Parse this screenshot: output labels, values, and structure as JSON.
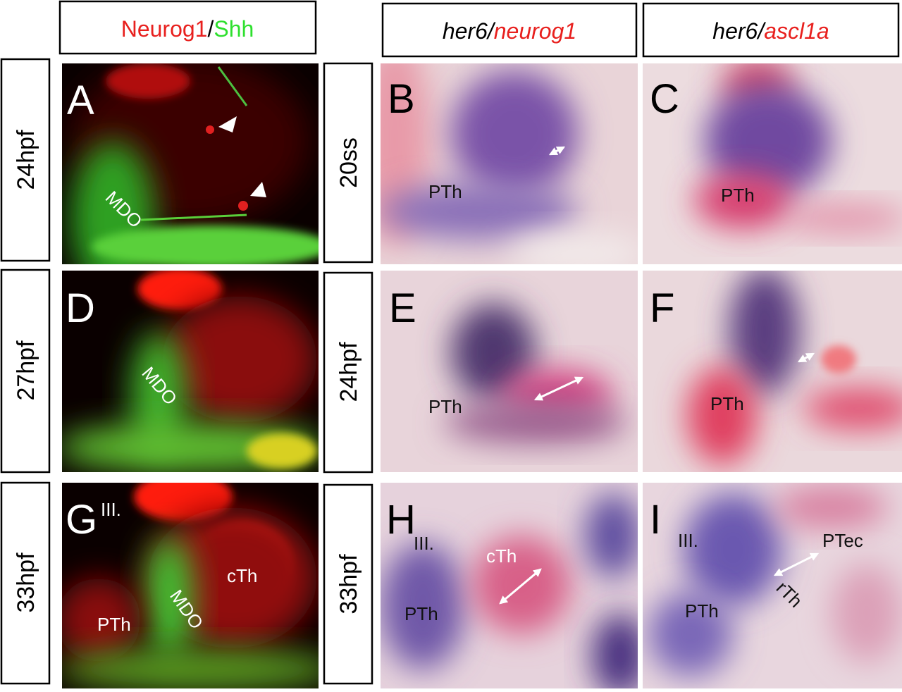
{
  "column_headers": [
    [
      "Neurog1",
      "/",
      "Shh"
    ],
    [
      "her6",
      "/",
      "neurog1"
    ],
    [
      "her6",
      "/",
      "ascl1a"
    ]
  ],
  "row_labels_left": [
    "24hpf",
    "27hpf",
    "33hpf"
  ],
  "row_labels_right": [
    "20ss",
    "24hpf",
    "33hpf"
  ],
  "panels": [
    {
      "letter": "A",
      "labels": [
        "MDO"
      ]
    },
    {
      "letter": "B",
      "labels": [
        "PTh"
      ]
    },
    {
      "letter": "C",
      "labels": [
        "PTh"
      ]
    },
    {
      "letter": "D",
      "labels": [
        "MDO"
      ]
    },
    {
      "letter": "E",
      "labels": [
        "PTh"
      ]
    },
    {
      "letter": "F",
      "labels": [
        "PTh"
      ]
    },
    {
      "letter": "G",
      "labels": [
        "III.",
        "cTh",
        "PTh",
        "MDO"
      ]
    },
    {
      "letter": "H",
      "labels": [
        "III.",
        "cTh",
        "PTh"
      ]
    },
    {
      "letter": "I",
      "labels": [
        "III.",
        "PTec",
        "rTh",
        "PTh"
      ]
    }
  ]
}
